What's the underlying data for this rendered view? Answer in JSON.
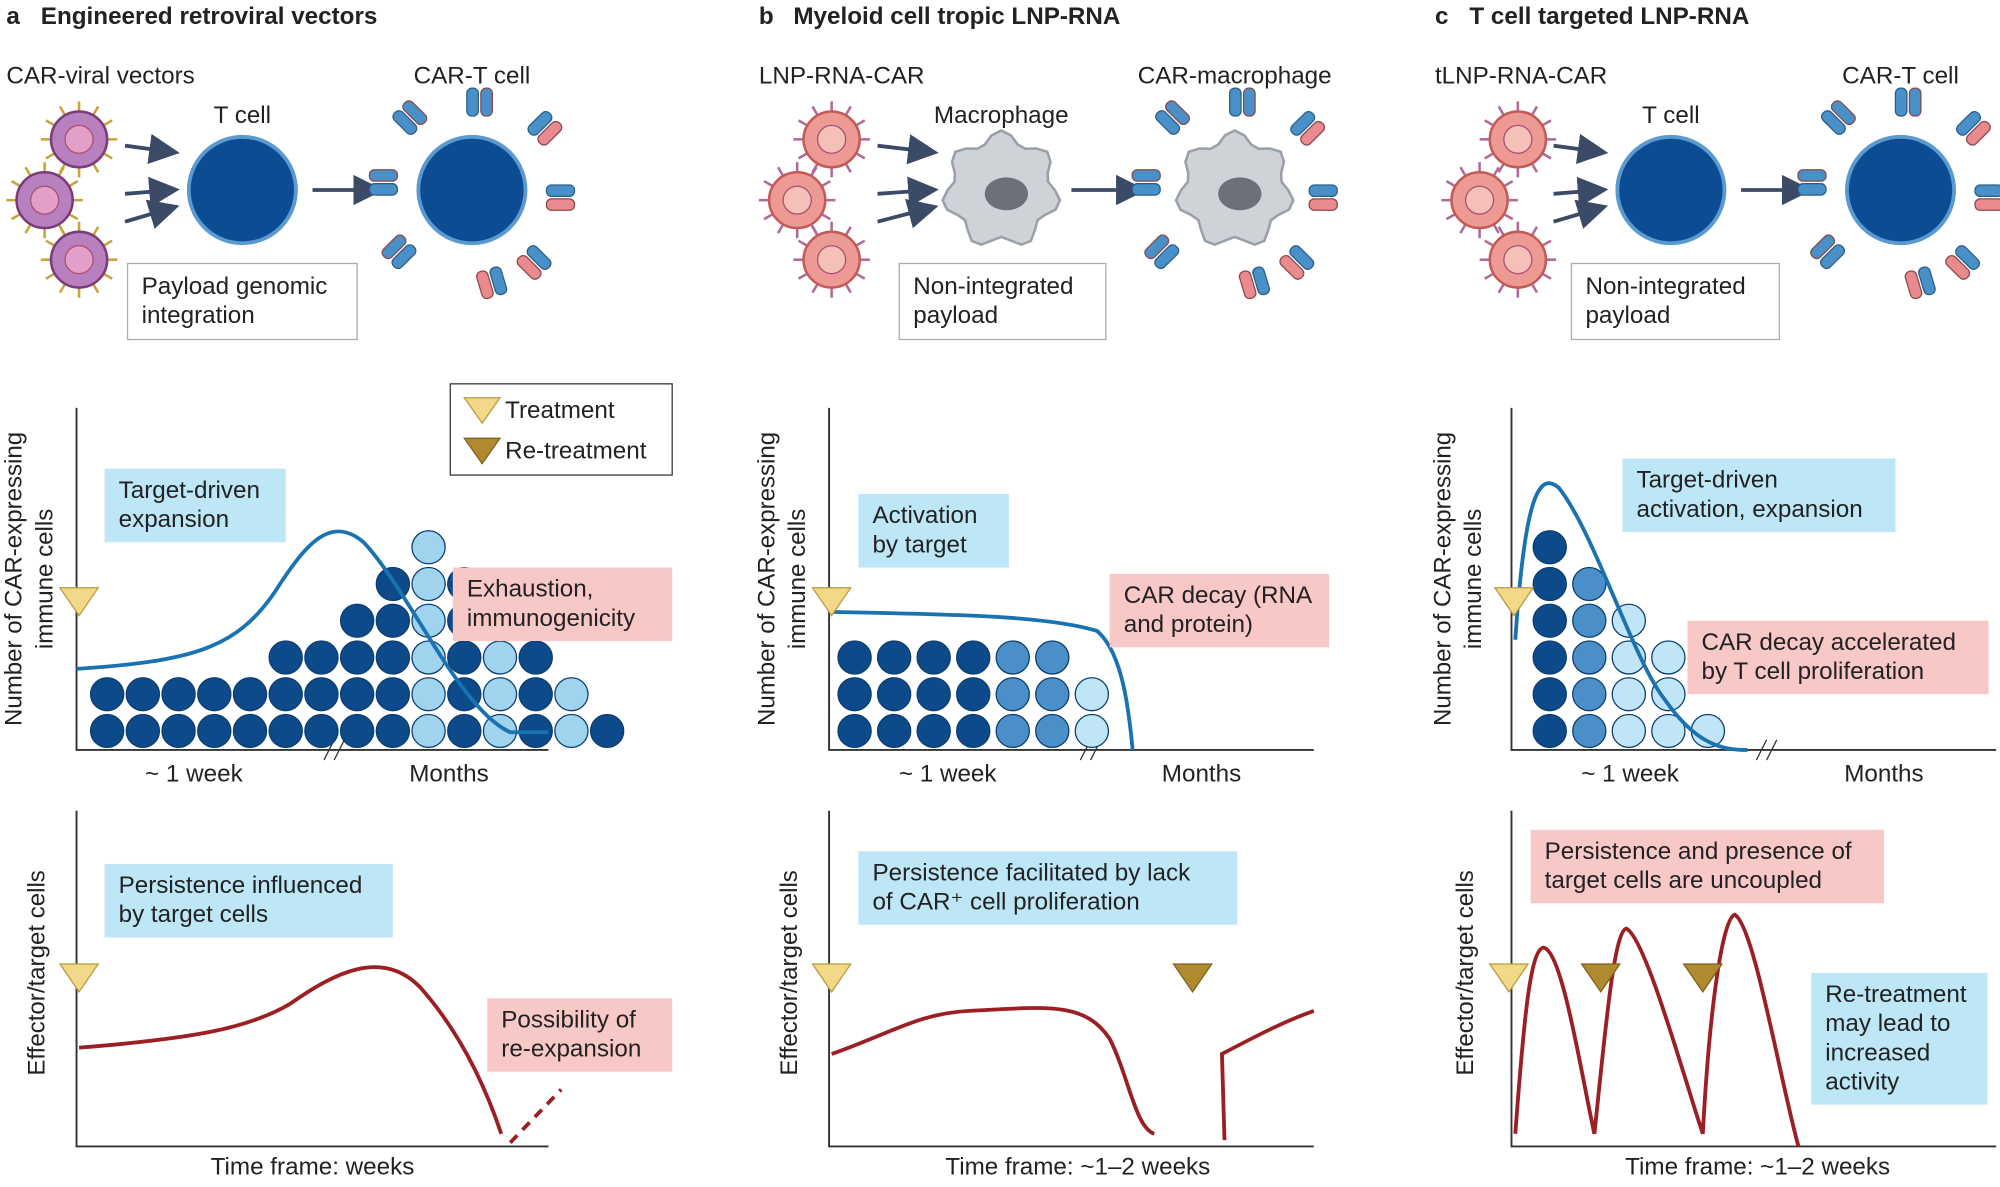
{
  "legend": {
    "treatment": "Treatment",
    "retreatment": "Re-treatment"
  },
  "panels": [
    {
      "letter": "a",
      "title": "Engineered retroviral vectors",
      "vector_label": "CAR-viral vectors",
      "cell_label": "T cell",
      "result_label": "CAR-T cell",
      "payload": [
        "Payload genomic",
        "integration"
      ],
      "top_y_label": [
        "Number of CAR-expressing",
        "immune cells"
      ],
      "top_notes": [
        [
          "Target-driven",
          "expansion"
        ],
        [
          "Exhaustion,",
          "immunogenicity"
        ]
      ],
      "top_x_labels": [
        "~ 1 week",
        "Months"
      ],
      "bottom_y_label": "Effector/target cells",
      "bottom_notes": [
        [
          "Persistence influenced",
          "by target cells"
        ],
        [
          "Possibility of",
          "re-expansion"
        ]
      ],
      "bottom_x_label": "Time frame: weeks"
    },
    {
      "letter": "b",
      "title": "Myeloid cell tropic LNP-RNA",
      "vector_label": "LNP-RNA-CAR",
      "cell_label": "Macrophage",
      "result_label": "CAR-macrophage",
      "payload": [
        "Non-integrated",
        "payload"
      ],
      "top_y_label": [
        "Number of CAR-expressing",
        "immune cells"
      ],
      "top_notes": [
        [
          "Activation",
          "by target"
        ],
        [
          "CAR decay (RNA",
          "and protein)"
        ]
      ],
      "top_x_labels": [
        "~ 1 week",
        "Months"
      ],
      "bottom_y_label": "Effector/target cells",
      "bottom_notes": [
        [
          "Persistence facilitated by lack",
          "of CAR⁺ cell proliferation"
        ]
      ],
      "bottom_x_label": "Time frame: ~1–2 weeks"
    },
    {
      "letter": "c",
      "title": "T cell targeted LNP-RNA",
      "vector_label": "tLNP-RNA-CAR",
      "cell_label": "T cell",
      "result_label": "CAR-T cell",
      "payload": [
        "Non-integrated",
        "payload"
      ],
      "top_y_label": [
        "Number of CAR-expressing",
        "immune cells"
      ],
      "top_notes": [
        [
          "Target-driven",
          "activation, expansion"
        ],
        [
          "CAR decay accelerated",
          "by T cell proliferation"
        ]
      ],
      "top_x_labels": [
        "~ 1 week",
        "Months"
      ],
      "bottom_y_label": "Effector/target cells",
      "bottom_notes": [
        [
          "Persistence and presence of",
          "target cells are uncoupled"
        ],
        [
          "Re-treatment",
          "may lead to",
          "increased",
          "activity"
        ]
      ],
      "bottom_x_label": "Time frame: ~1–2 weeks"
    }
  ]
}
